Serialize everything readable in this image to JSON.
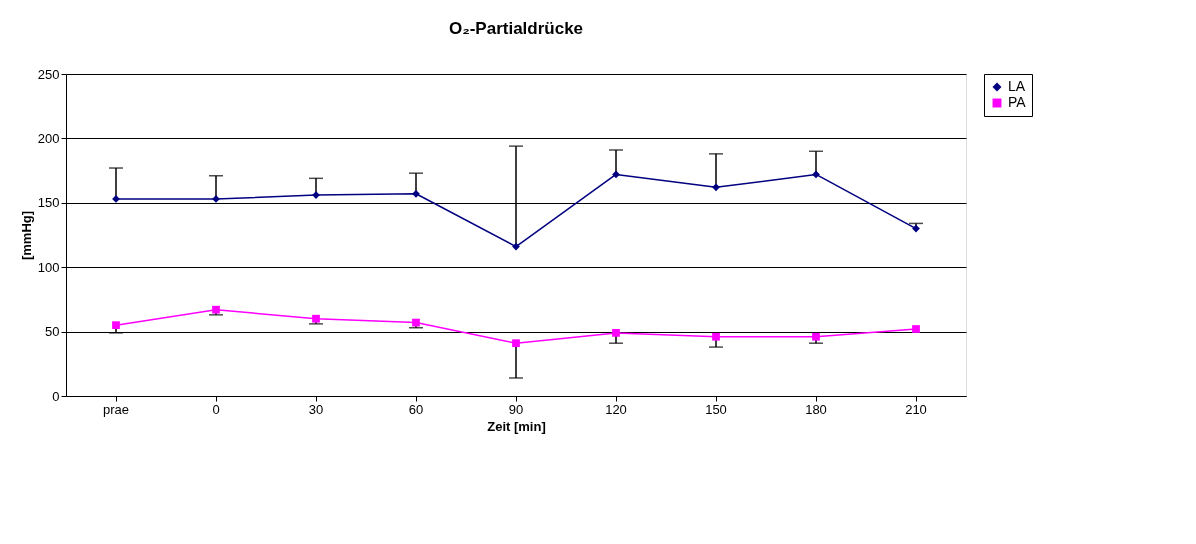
{
  "chart_data": {
    "type": "line",
    "title": "O₂-Partialdrücke",
    "xlabel": "Zeit [min]",
    "ylabel": "[mmHg]",
    "categories": [
      "prae",
      "0",
      "30",
      "60",
      "90",
      "120",
      "150",
      "180",
      "210"
    ],
    "series": [
      {
        "name": "LA",
        "color": "#000080",
        "marker": "diamond",
        "values": [
          153,
          153,
          156,
          157,
          116,
          172,
          162,
          172,
          130
        ],
        "errors": [
          [
            153,
            177
          ],
          [
            153,
            171
          ],
          [
            156,
            169
          ],
          [
            157,
            173
          ],
          [
            116,
            194
          ],
          [
            172,
            191
          ],
          [
            162,
            188
          ],
          [
            172,
            190
          ],
          [
            130,
            134
          ]
        ]
      },
      {
        "name": "PA",
        "color": "#ff00ff",
        "marker": "square",
        "values": [
          55,
          67,
          60,
          57,
          41,
          49,
          46,
          46,
          52
        ],
        "errors": [
          [
            49,
            55
          ],
          [
            63,
            67
          ],
          [
            56,
            60
          ],
          [
            53,
            57
          ],
          [
            14,
            41
          ],
          [
            41,
            49
          ],
          [
            38,
            46
          ],
          [
            41,
            46
          ],
          null
        ]
      }
    ],
    "ylim": [
      0,
      250
    ],
    "yticks": [
      0,
      50,
      100,
      150,
      200,
      250
    ],
    "grid": "y",
    "legend": "right",
    "line_style": "solid"
  }
}
